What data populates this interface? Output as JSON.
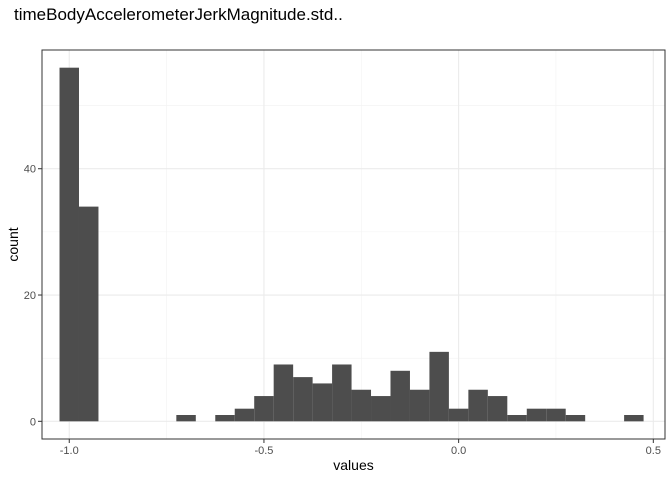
{
  "chart_data": {
    "type": "bar",
    "title": "timeBodyAccelerometerJerkMagnitude.std..",
    "xlabel": "values",
    "ylabel": "count",
    "xlim": [
      -1.07,
      0.53
    ],
    "ylim": [
      -2.8,
      58.8
    ],
    "x_ticks": [
      -1.0,
      -0.5,
      0.0,
      0.5
    ],
    "x_tick_labels": [
      "-1.0",
      "-0.5",
      "0.0",
      "0.5"
    ],
    "y_ticks": [
      0,
      20,
      40
    ],
    "y_tick_labels": [
      "0",
      "20",
      "40"
    ],
    "grid": true,
    "bar_color": "#4d4d4d",
    "bins": [
      {
        "x0": -1.025,
        "x1": -0.975,
        "count": 56
      },
      {
        "x0": -0.975,
        "x1": -0.925,
        "count": 34
      },
      {
        "x0": -0.725,
        "x1": -0.675,
        "count": 1
      },
      {
        "x0": -0.625,
        "x1": -0.575,
        "count": 1
      },
      {
        "x0": -0.575,
        "x1": -0.525,
        "count": 2
      },
      {
        "x0": -0.525,
        "x1": -0.475,
        "count": 4
      },
      {
        "x0": -0.475,
        "x1": -0.425,
        "count": 9
      },
      {
        "x0": -0.425,
        "x1": -0.375,
        "count": 7
      },
      {
        "x0": -0.375,
        "x1": -0.325,
        "count": 6
      },
      {
        "x0": -0.325,
        "x1": -0.275,
        "count": 9
      },
      {
        "x0": -0.275,
        "x1": -0.225,
        "count": 5
      },
      {
        "x0": -0.225,
        "x1": -0.175,
        "count": 4
      },
      {
        "x0": -0.175,
        "x1": -0.125,
        "count": 8
      },
      {
        "x0": -0.125,
        "x1": -0.075,
        "count": 5
      },
      {
        "x0": -0.075,
        "x1": -0.025,
        "count": 11
      },
      {
        "x0": -0.025,
        "x1": 0.025,
        "count": 2
      },
      {
        "x0": 0.025,
        "x1": 0.075,
        "count": 5
      },
      {
        "x0": 0.075,
        "x1": 0.125,
        "count": 4
      },
      {
        "x0": 0.125,
        "x1": 0.175,
        "count": 1
      },
      {
        "x0": 0.175,
        "x1": 0.225,
        "count": 2
      },
      {
        "x0": 0.225,
        "x1": 0.275,
        "count": 2
      },
      {
        "x0": 0.275,
        "x1": 0.325,
        "count": 1
      },
      {
        "x0": 0.425,
        "x1": 0.475,
        "count": 1
      }
    ]
  }
}
